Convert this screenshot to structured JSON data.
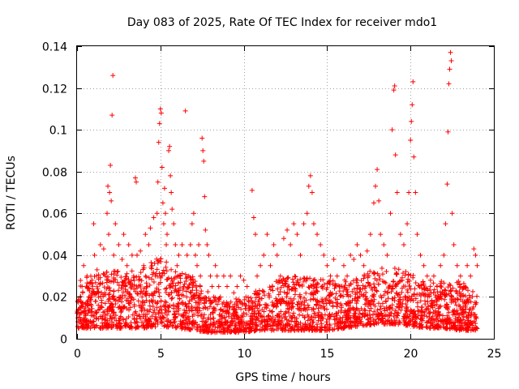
{
  "chart_data": {
    "type": "scatter",
    "title": "Day 083 of 2025, Rate Of TEC Index for receiver mdo1",
    "xlabel": "GPS time / hours",
    "ylabel": "ROTI / TECUs",
    "xlim": [
      0,
      25
    ],
    "ylim": [
      0,
      0.14
    ],
    "xticks": [
      0,
      5,
      10,
      15,
      20,
      25
    ],
    "xtick_labels": [
      "0",
      "5",
      "10",
      "15",
      "20",
      "25"
    ],
    "yticks": [
      0,
      0.02,
      0.04,
      0.06,
      0.08,
      0.1,
      0.12,
      0.14
    ],
    "ytick_labels": [
      "0",
      "0.02",
      "0.04",
      "0.06",
      "0.08",
      "0.1",
      "0.12",
      "0.14"
    ],
    "grid": true,
    "marker": "plus",
    "color": "#ff0000",
    "series": [
      {
        "name": "ROTI",
        "points": [
          [
            0.05,
            0.01
          ],
          [
            0.2,
            0.015
          ],
          [
            0.3,
            0.025
          ],
          [
            0.4,
            0.035
          ],
          [
            0.5,
            0.012
          ],
          [
            0.6,
            0.03
          ],
          [
            0.7,
            0.02
          ],
          [
            0.8,
            0.008
          ],
          [
            0.9,
            0.028
          ],
          [
            1.0,
            0.055
          ],
          [
            1.05,
            0.04
          ],
          [
            1.1,
            0.018
          ],
          [
            1.2,
            0.033
          ],
          [
            1.3,
            0.022
          ],
          [
            1.4,
            0.045
          ],
          [
            1.5,
            0.015
          ],
          [
            1.6,
            0.043
          ],
          [
            1.7,
            0.03
          ],
          [
            1.8,
            0.06
          ],
          [
            1.85,
            0.073
          ],
          [
            1.9,
            0.05
          ],
          [
            1.95,
            0.07
          ],
          [
            2.0,
            0.083
          ],
          [
            2.05,
            0.066
          ],
          [
            2.1,
            0.107
          ],
          [
            2.15,
            0.126
          ],
          [
            2.2,
            0.04
          ],
          [
            2.3,
            0.055
          ],
          [
            2.4,
            0.032
          ],
          [
            2.5,
            0.045
          ],
          [
            2.6,
            0.02
          ],
          [
            2.7,
            0.038
          ],
          [
            2.8,
            0.05
          ],
          [
            2.9,
            0.025
          ],
          [
            3.0,
            0.035
          ],
          [
            3.1,
            0.045
          ],
          [
            3.2,
            0.015
          ],
          [
            3.3,
            0.04
          ],
          [
            3.4,
            0.03
          ],
          [
            3.5,
            0.077
          ],
          [
            3.55,
            0.075
          ],
          [
            3.6,
            0.04
          ],
          [
            3.7,
            0.028
          ],
          [
            3.8,
            0.042
          ],
          [
            3.9,
            0.02
          ],
          [
            4.0,
            0.035
          ],
          [
            4.1,
            0.05
          ],
          [
            4.2,
            0.025
          ],
          [
            4.3,
            0.045
          ],
          [
            4.4,
            0.053
          ],
          [
            4.5,
            0.035
          ],
          [
            4.6,
            0.058
          ],
          [
            4.7,
            0.03
          ],
          [
            4.8,
            0.06
          ],
          [
            4.85,
            0.075
          ],
          [
            4.9,
            0.094
          ],
          [
            4.95,
            0.103
          ],
          [
            5.0,
            0.11
          ],
          [
            5.05,
            0.108
          ],
          [
            5.1,
            0.082
          ],
          [
            5.15,
            0.065
          ],
          [
            5.2,
            0.055
          ],
          [
            5.25,
            0.072
          ],
          [
            5.3,
            0.06
          ],
          [
            5.35,
            0.045
          ],
          [
            5.4,
            0.05
          ],
          [
            5.5,
            0.09
          ],
          [
            5.55,
            0.092
          ],
          [
            5.6,
            0.078
          ],
          [
            5.65,
            0.07
          ],
          [
            5.7,
            0.062
          ],
          [
            5.8,
            0.055
          ],
          [
            5.9,
            0.045
          ],
          [
            6.0,
            0.035
          ],
          [
            6.1,
            0.04
          ],
          [
            6.2,
            0.03
          ],
          [
            6.3,
            0.045
          ],
          [
            6.4,
            0.025
          ],
          [
            6.5,
            0.109
          ],
          [
            6.6,
            0.04
          ],
          [
            6.7,
            0.03
          ],
          [
            6.8,
            0.045
          ],
          [
            6.9,
            0.055
          ],
          [
            7.0,
            0.06
          ],
          [
            7.1,
            0.04
          ],
          [
            7.2,
            0.035
          ],
          [
            7.3,
            0.045
          ],
          [
            7.4,
            0.03
          ],
          [
            7.5,
            0.096
          ],
          [
            7.55,
            0.09
          ],
          [
            7.6,
            0.085
          ],
          [
            7.65,
            0.068
          ],
          [
            7.7,
            0.052
          ],
          [
            7.8,
            0.045
          ],
          [
            7.9,
            0.04
          ],
          [
            8.0,
            0.03
          ],
          [
            8.1,
            0.025
          ],
          [
            8.2,
            0.02
          ],
          [
            8.3,
            0.035
          ],
          [
            8.4,
            0.03
          ],
          [
            8.5,
            0.025
          ],
          [
            8.6,
            0.02
          ],
          [
            8.8,
            0.03
          ],
          [
            9.0,
            0.025
          ],
          [
            9.2,
            0.03
          ],
          [
            9.4,
            0.022
          ],
          [
            9.6,
            0.025
          ],
          [
            9.8,
            0.03
          ],
          [
            10.0,
            0.028
          ],
          [
            10.2,
            0.025
          ],
          [
            10.5,
            0.071
          ],
          [
            10.6,
            0.058
          ],
          [
            10.7,
            0.05
          ],
          [
            10.8,
            0.03
          ],
          [
            11.0,
            0.035
          ],
          [
            11.2,
            0.04
          ],
          [
            11.4,
            0.05
          ],
          [
            11.6,
            0.035
          ],
          [
            11.8,
            0.045
          ],
          [
            12.0,
            0.04
          ],
          [
            12.2,
            0.03
          ],
          [
            12.4,
            0.048
          ],
          [
            12.6,
            0.052
          ],
          [
            12.8,
            0.045
          ],
          [
            13.0,
            0.055
          ],
          [
            13.2,
            0.05
          ],
          [
            13.4,
            0.04
          ],
          [
            13.6,
            0.055
          ],
          [
            13.8,
            0.06
          ],
          [
            13.9,
            0.073
          ],
          [
            14.0,
            0.078
          ],
          [
            14.1,
            0.07
          ],
          [
            14.2,
            0.055
          ],
          [
            14.4,
            0.05
          ],
          [
            14.6,
            0.045
          ],
          [
            14.8,
            0.04
          ],
          [
            15.0,
            0.035
          ],
          [
            15.2,
            0.03
          ],
          [
            15.4,
            0.038
          ],
          [
            15.6,
            0.03
          ],
          [
            15.8,
            0.025
          ],
          [
            16.0,
            0.035
          ],
          [
            16.2,
            0.03
          ],
          [
            16.4,
            0.04
          ],
          [
            16.6,
            0.038
          ],
          [
            16.8,
            0.045
          ],
          [
            17.0,
            0.04
          ],
          [
            17.2,
            0.035
          ],
          [
            17.4,
            0.042
          ],
          [
            17.6,
            0.05
          ],
          [
            17.8,
            0.065
          ],
          [
            17.9,
            0.073
          ],
          [
            18.0,
            0.081
          ],
          [
            18.1,
            0.066
          ],
          [
            18.2,
            0.05
          ],
          [
            18.4,
            0.045
          ],
          [
            18.6,
            0.04
          ],
          [
            18.8,
            0.06
          ],
          [
            18.9,
            0.1
          ],
          [
            19.0,
            0.119
          ],
          [
            19.05,
            0.121
          ],
          [
            19.1,
            0.088
          ],
          [
            19.2,
            0.07
          ],
          [
            19.4,
            0.05
          ],
          [
            19.6,
            0.045
          ],
          [
            19.8,
            0.055
          ],
          [
            19.9,
            0.07
          ],
          [
            20.0,
            0.095
          ],
          [
            20.05,
            0.104
          ],
          [
            20.1,
            0.112
          ],
          [
            20.15,
            0.123
          ],
          [
            20.2,
            0.087
          ],
          [
            20.3,
            0.07
          ],
          [
            20.4,
            0.05
          ],
          [
            20.6,
            0.04
          ],
          [
            20.8,
            0.035
          ],
          [
            21.0,
            0.03
          ],
          [
            21.2,
            0.028
          ],
          [
            21.4,
            0.03
          ],
          [
            21.6,
            0.025
          ],
          [
            21.8,
            0.035
          ],
          [
            22.0,
            0.04
          ],
          [
            22.1,
            0.055
          ],
          [
            22.2,
            0.074
          ],
          [
            22.25,
            0.099
          ],
          [
            22.3,
            0.122
          ],
          [
            22.35,
            0.129
          ],
          [
            22.4,
            0.137
          ],
          [
            22.45,
            0.133
          ],
          [
            22.5,
            0.06
          ],
          [
            22.6,
            0.045
          ],
          [
            22.8,
            0.035
          ],
          [
            23.0,
            0.03
          ],
          [
            23.2,
            0.025
          ],
          [
            23.4,
            0.035
          ],
          [
            23.6,
            0.03
          ],
          [
            23.8,
            0.043
          ],
          [
            23.9,
            0.04
          ],
          [
            24.0,
            0.035
          ]
        ]
      }
    ],
    "density_band": {
      "description": "dense background scatter of plus markers",
      "x_range": [
        0,
        24
      ],
      "envelope": [
        [
          0,
          0.005,
          0.03
        ],
        [
          1,
          0.005,
          0.03
        ],
        [
          2,
          0.005,
          0.034
        ],
        [
          3,
          0.005,
          0.032
        ],
        [
          4,
          0.005,
          0.034
        ],
        [
          5,
          0.006,
          0.04
        ],
        [
          6,
          0.005,
          0.032
        ],
        [
          7,
          0.004,
          0.03
        ],
        [
          8,
          0.003,
          0.022
        ],
        [
          9,
          0.003,
          0.018
        ],
        [
          10,
          0.003,
          0.02
        ],
        [
          11,
          0.004,
          0.024
        ],
        [
          12,
          0.004,
          0.028
        ],
        [
          13,
          0.004,
          0.03
        ],
        [
          14,
          0.004,
          0.03
        ],
        [
          15,
          0.004,
          0.028
        ],
        [
          16,
          0.005,
          0.028
        ],
        [
          17,
          0.006,
          0.03
        ],
        [
          18,
          0.007,
          0.034
        ],
        [
          19,
          0.007,
          0.034
        ],
        [
          20,
          0.006,
          0.032
        ],
        [
          21,
          0.005,
          0.026
        ],
        [
          22,
          0.005,
          0.028
        ],
        [
          23,
          0.004,
          0.028
        ],
        [
          24,
          0.004,
          0.022
        ]
      ]
    }
  }
}
